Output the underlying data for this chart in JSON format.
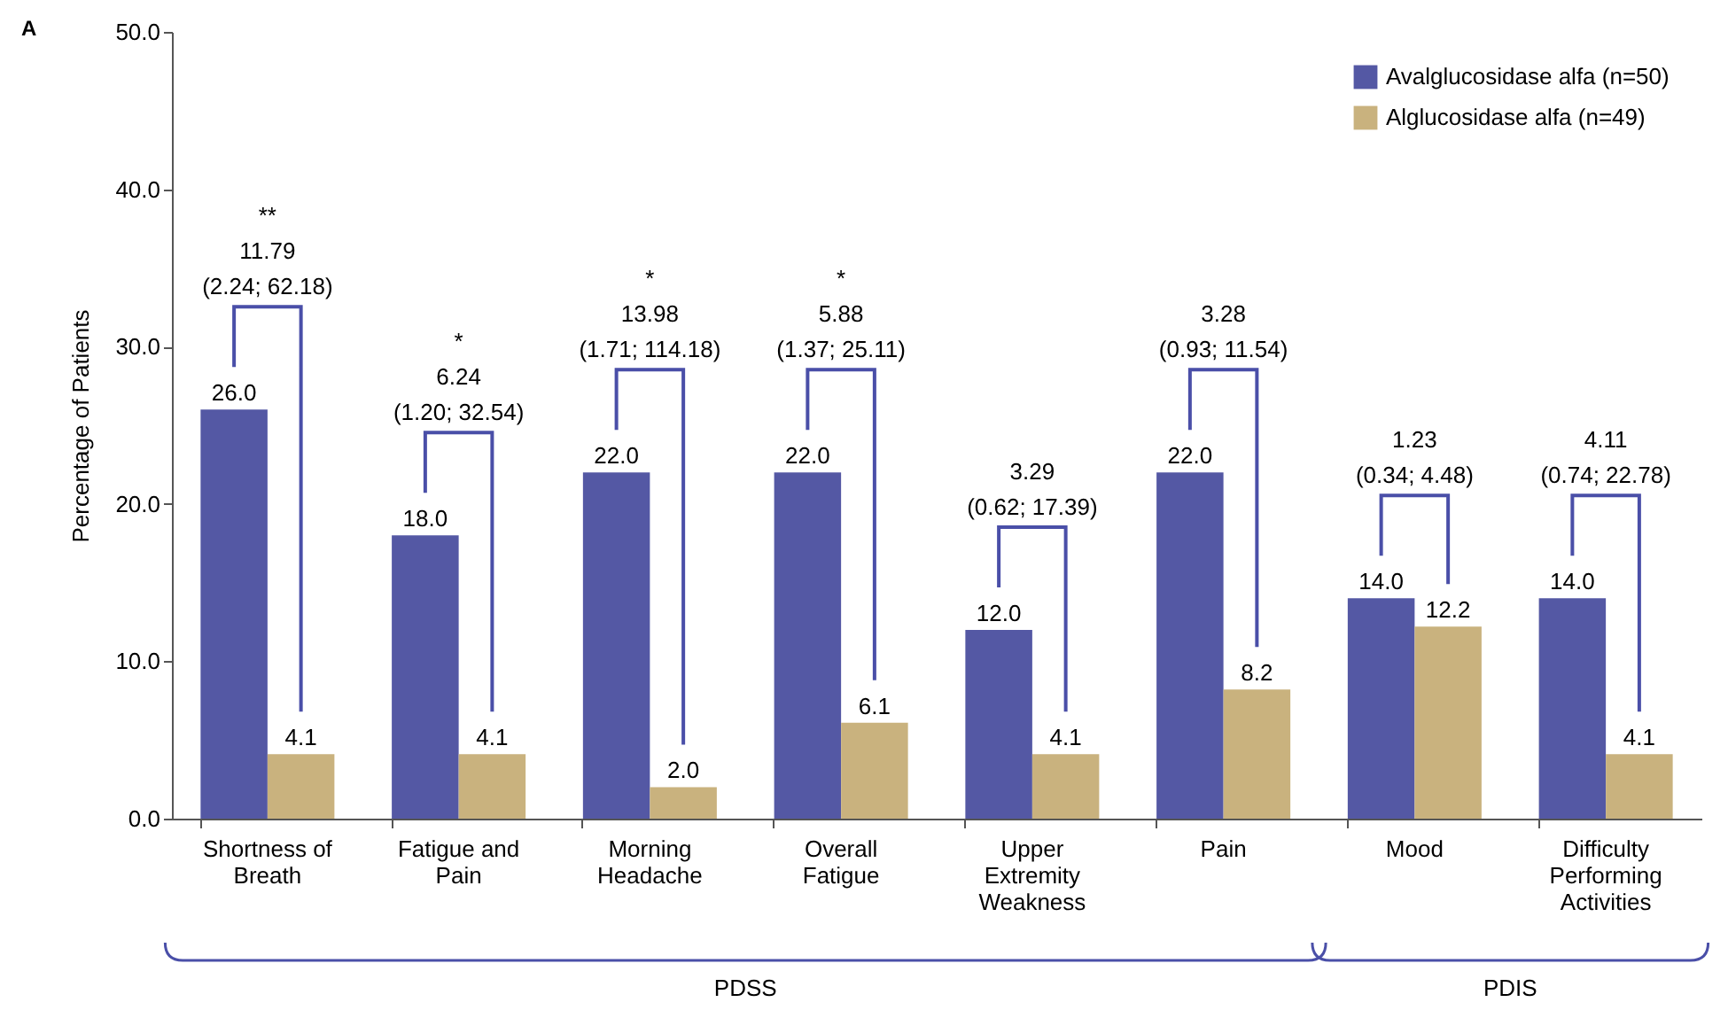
{
  "chart_data": {
    "type": "bar",
    "ylabel": "Percentage of Patients",
    "categories": [
      "Shortness of Breath",
      "Fatigue and Pain",
      "Morning Headache",
      "Overall Fatigue",
      "Upper Extremity Weakness",
      "Pain",
      "Mood",
      "Difficulty Performing Activities"
    ],
    "series": [
      {
        "name": "Avalglucosidase alfa (n=50)",
        "color": "#5458a4",
        "values": [
          26.0,
          18.0,
          22.0,
          22.0,
          12.0,
          22.0,
          14.0,
          14.0
        ],
        "value_labels": [
          "26.0",
          "18.0",
          "22.0",
          "22.0",
          "12.0",
          "22.0",
          "14.0",
          "14.0"
        ]
      },
      {
        "name": "Alglucosidase alfa (n=49)",
        "color": "#c9b27e",
        "values": [
          4.1,
          4.1,
          2.0,
          6.1,
          4.1,
          8.2,
          12.2,
          4.1
        ],
        "value_labels": [
          "4.1",
          "4.1",
          "2.0",
          "6.1",
          "4.1",
          "8.2",
          "12.2",
          "4.1"
        ]
      }
    ],
    "ylim": [
      0,
      50
    ],
    "yticks": [
      {
        "value": 0,
        "label": "0.0"
      },
      {
        "value": 10,
        "label": "10.0"
      },
      {
        "value": 20,
        "label": "20.0"
      },
      {
        "value": 30,
        "label": "30.0"
      },
      {
        "value": 40,
        "label": "40.0"
      },
      {
        "value": 50,
        "label": "50.0"
      }
    ],
    "grid": false,
    "legend": "top right",
    "annotations": [
      "A",
      "**\n11.79\n(2.24; 62.18)",
      "*\n6.24\n(1.20; 32.54)",
      "*\n13.98\n(1.71; 114.18)",
      "*\n5.88\n(1.37; 25.11)",
      "3.29\n(0.62; 17.39)",
      "3.28\n(0.93; 11.54)",
      "1.23\n(0.34; 4.48)",
      "4.11\n(0.74; 22.78)",
      "PDSS",
      "PDIS"
    ]
  }
}
